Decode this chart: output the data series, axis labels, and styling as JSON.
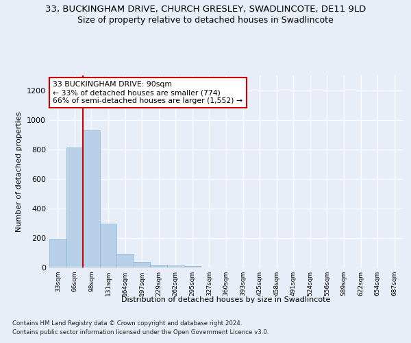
{
  "title": "33, BUCKINGHAM DRIVE, CHURCH GRESLEY, SWADLINCOTE, DE11 9LD",
  "subtitle": "Size of property relative to detached houses in Swadlincote",
  "xlabel": "Distribution of detached houses by size in Swadlincote",
  "ylabel": "Number of detached properties",
  "footer_line1": "Contains HM Land Registry data © Crown copyright and database right 2024.",
  "footer_line2": "Contains public sector information licensed under the Open Government Licence v3.0.",
  "bin_labels": [
    "33sqm",
    "66sqm",
    "98sqm",
    "131sqm",
    "164sqm",
    "197sqm",
    "229sqm",
    "262sqm",
    "295sqm",
    "327sqm",
    "360sqm",
    "393sqm",
    "425sqm",
    "458sqm",
    "491sqm",
    "524sqm",
    "556sqm",
    "589sqm",
    "622sqm",
    "654sqm",
    "687sqm"
  ],
  "bar_values": [
    197,
    812,
    930,
    295,
    93,
    35,
    18,
    12,
    10,
    0,
    0,
    0,
    0,
    0,
    0,
    0,
    0,
    0,
    0,
    0,
    0
  ],
  "bar_color": "#b8d0e8",
  "bar_edgecolor": "#8ab4d4",
  "annotation_text_line1": "33 BUCKINGHAM DRIVE: 90sqm",
  "annotation_text_line2": "← 33% of detached houses are smaller (774)",
  "annotation_text_line3": "66% of semi-detached houses are larger (1,552) →",
  "annotation_box_color": "#ffffff",
  "annotation_border_color": "#cc0000",
  "vline_color": "#cc0000",
  "ylim": [
    0,
    1300
  ],
  "yticks": [
    0,
    200,
    400,
    600,
    800,
    1000,
    1200
  ],
  "background_color": "#e8eef8",
  "plot_bg_color": "#e8eef8",
  "title_fontsize": 9.5,
  "subtitle_fontsize": 9,
  "grid_color": "#ffffff"
}
